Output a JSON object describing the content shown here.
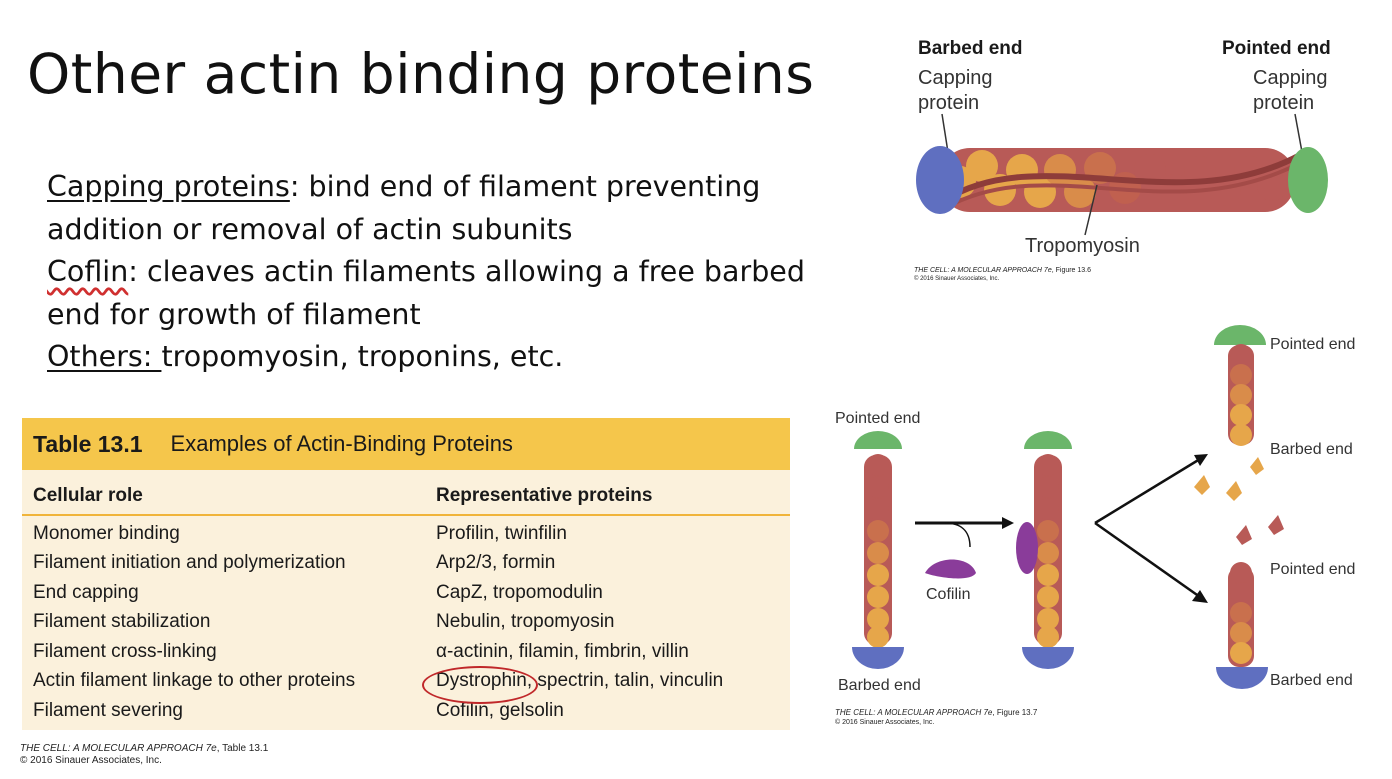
{
  "slide": {
    "title": "Other actin binding proteins",
    "bullets": [
      {
        "term": "Capping proteins",
        "text_line1": ": bind end of filament preventing",
        "text_line2": "addition or removal of actin subunits"
      },
      {
        "term": "Coflin",
        "text_line1": ": cleaves actin filaments allowing a free barbed",
        "text_line2": "end for growth of filament"
      },
      {
        "term": "Others: ",
        "text_line1": "tropomyosin, troponins, etc."
      }
    ]
  },
  "table": {
    "number": "Table 13.1",
    "caption": "Examples of Actin-Binding Proteins",
    "headers": [
      "Cellular role",
      "Representative proteins"
    ],
    "rows": [
      [
        "Monomer binding",
        "Profilin, twinfilin"
      ],
      [
        "Filament initiation and polymerization",
        "Arp2/3, formin"
      ],
      [
        "End capping",
        "CapZ, tropomodulin"
      ],
      [
        "Filament stabilization",
        "Nebulin, tropomyosin"
      ],
      [
        "Filament cross-linking",
        "α-actinin, filamin, fimbrin, villin"
      ],
      [
        "Actin filament linkage to other proteins",
        "Dystrophin, spectrin, talin, vinculin"
      ],
      [
        "Filament severing",
        "Cofilin, gelsolin"
      ]
    ],
    "credit_line1_italic": "THE CELL: A MOLECULAR APPROACH 7e",
    "credit_line1_rest": ", Table 13.1",
    "credit_line2": "© 2016 Sinauer Associates, Inc."
  },
  "figure_13_6": {
    "barbed_end": "Barbed end",
    "pointed_end": "Pointed end",
    "capping_left_1": "Capping",
    "capping_left_2": "protein",
    "capping_right_1": "Capping",
    "capping_right_2": "protein",
    "tropomyosin": "Tropomyosin",
    "credit_italic": "THE CELL: A MOLECULAR APPROACH 7e",
    "credit_rest": ", Figure 13.6",
    "credit_line2": "© 2016 Sinauer Associates, Inc."
  },
  "figure_13_7": {
    "pointed_end_left": "Pointed end",
    "barbed_end_left": "Barbed end",
    "cofilin": "Cofilin",
    "pointed_end_top": "Pointed end",
    "barbed_end_top": "Barbed end",
    "pointed_end_bottom": "Pointed end",
    "barbed_end_bottom": "Barbed end",
    "credit_italic": "THE CELL: A MOLECULAR APPROACH 7e",
    "credit_rest": ", Figure 13.7",
    "credit_line2": "© 2016 Sinauer Associates, Inc."
  },
  "colors": {
    "actin_red": "#b85a57",
    "actin_orange": "#e6a64a",
    "capping_blue": "#5f6fc0",
    "capping_green": "#6bb66a",
    "cofilin_purple": "#8a3c9a",
    "table_header": "#f5c64b",
    "table_body": "#fbf1dc",
    "highlight_oval": "#c0282a"
  }
}
